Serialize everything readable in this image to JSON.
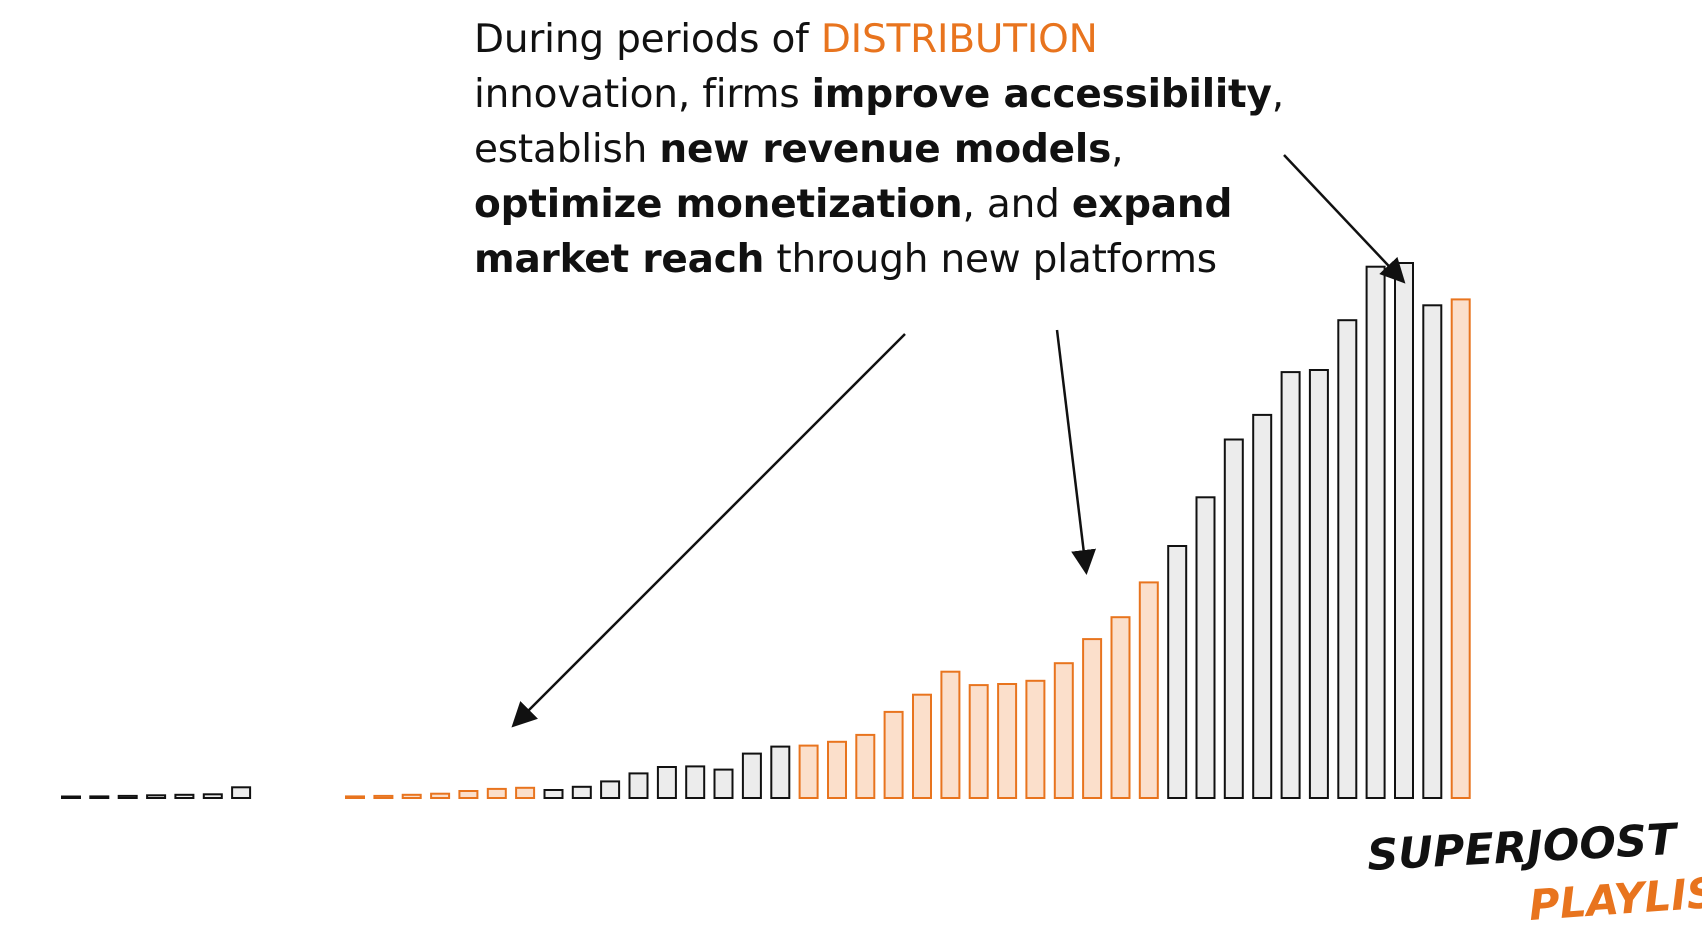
{
  "caption": {
    "line1": {
      "t1": "During periods of ",
      "highlight": "DISTRIBUTION"
    },
    "line2": {
      "t1": "innovation, firms ",
      "b1": "improve accessibility",
      "t2": ","
    },
    "line3": {
      "t1": "establish ",
      "b1": "new revenue models",
      "t2": ","
    },
    "line4": {
      "b1": "optimize monetization",
      "t1": ", and ",
      "b2": "expand"
    },
    "line5": {
      "b1": "market reach",
      "t1": " through new platforms"
    }
  },
  "colors": {
    "accent": "#e8741e",
    "accent_fill": "#fbdfcb",
    "neutral_stroke": "#111111",
    "neutral_fill": "#ececec"
  },
  "logo": {
    "line1": "SUPERJOOST",
    "line2": "PLAYLIST"
  },
  "chart_data": {
    "type": "bar",
    "title": "",
    "xlabel": "",
    "ylabel": "",
    "ylim": [
      0,
      100
    ],
    "grid": false,
    "legend": "none",
    "series": [
      {
        "group": 1,
        "values": [
          0.2,
          0.3,
          0.4,
          0.5,
          0.6,
          0.7,
          2
        ],
        "highlight": [
          false,
          false,
          false,
          false,
          false,
          false,
          false
        ]
      },
      {
        "group": 2,
        "values": [
          0.3,
          0.4,
          0.6,
          0.8,
          1.3,
          1.7,
          1.9,
          1.5,
          2.1,
          3.1,
          4.6,
          5.8,
          5.9,
          5.3,
          8.3,
          9.6,
          9.8,
          10.5,
          11.8,
          16.1,
          19.3,
          23.6,
          21.1,
          21.3,
          21.9,
          25.2,
          29.7,
          33.8,
          40.3,
          47.1,
          56.2,
          67.0,
          71.6,
          79.6,
          80.0,
          89.3,
          99.3,
          100.0,
          92.1,
          93.2
        ],
        "highlight": [
          true,
          true,
          true,
          true,
          true,
          true,
          true,
          false,
          false,
          false,
          false,
          false,
          false,
          false,
          false,
          false,
          true,
          true,
          true,
          true,
          true,
          true,
          true,
          true,
          true,
          true,
          true,
          true,
          true,
          false,
          false,
          false,
          false,
          false,
          false,
          false,
          false,
          false,
          false,
          true
        ]
      }
    ]
  }
}
